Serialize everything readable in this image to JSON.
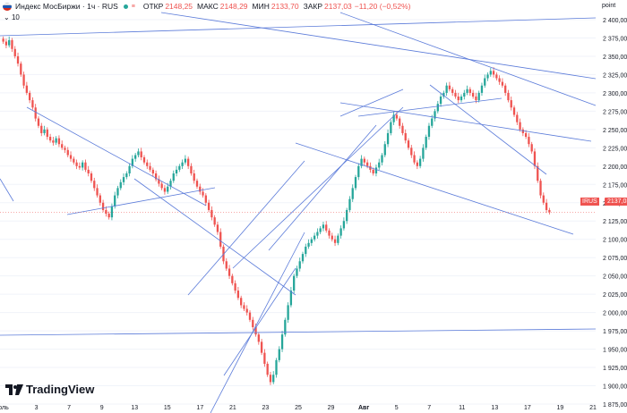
{
  "header": {
    "title": "Индекс МосБиржи · 1ч · RUS",
    "open_label": "ОТКР",
    "open_value": "2148,25",
    "high_label": "МАКС",
    "high_value": "2148,29",
    "low_label": "МИН",
    "low_value": "2133,70",
    "close_label": "ЗАКР",
    "close_value": "2137,03",
    "change": "−11,20 (−0,52%)",
    "volume_toggle": "10"
  },
  "price_axis": {
    "title": "point",
    "last_symbol": "IRUS",
    "last_price": "2137,03",
    "last_value": 2137.03
  },
  "brand": {
    "name": "TradingView"
  },
  "colors": {
    "up": "#26a69a",
    "down": "#ef5350",
    "trendline": "#5b7bd9",
    "grid": "#f0f3fa"
  },
  "chart_data": {
    "type": "candlestick",
    "ylim": [
      1875,
      2400
    ],
    "y_ticks": [
      "2 400,00",
      "2 375,00",
      "2 350,00",
      "2 325,00",
      "2 300,00",
      "2 275,00",
      "2 250,00",
      "2 225,00",
      "2 200,00",
      "2 175,00",
      "2 150,00",
      "2 125,00",
      "2 100,00",
      "2 075,00",
      "2 050,00",
      "2 025,00",
      "2 000,00",
      "1 975,00",
      "1 950,00",
      "1 925,00",
      "1 900,00",
      "1 875,00"
    ],
    "x_ticks": [
      "оль",
      "3",
      "7",
      "9",
      "13",
      "15",
      "17",
      "21",
      "23",
      "25",
      "29",
      "Авг",
      "5",
      "7",
      "11",
      "13",
      "17",
      "19",
      "21"
    ],
    "series_close": [
      2370,
      2365,
      2372,
      2360,
      2350,
      2340,
      2325,
      2310,
      2300,
      2290,
      2280,
      2265,
      2255,
      2245,
      2250,
      2240,
      2235,
      2232,
      2238,
      2230,
      2225,
      2222,
      2215,
      2210,
      2205,
      2200,
      2198,
      2205,
      2195,
      2190,
      2180,
      2170,
      2160,
      2150,
      2140,
      2135,
      2130,
      2145,
      2160,
      2170,
      2178,
      2185,
      2190,
      2200,
      2210,
      2215,
      2220,
      2212,
      2205,
      2200,
      2195,
      2190,
      2182,
      2176,
      2170,
      2165,
      2172,
      2180,
      2190,
      2195,
      2200,
      2205,
      2210,
      2200,
      2190,
      2180,
      2172,
      2165,
      2160,
      2150,
      2140,
      2130,
      2120,
      2110,
      2090,
      2070,
      2060,
      2050,
      2040,
      2030,
      2020,
      2010,
      2005,
      2000,
      1990,
      1980,
      1970,
      1960,
      1945,
      1930,
      1915,
      1905,
      1915,
      1935,
      1950,
      1970,
      1990,
      2010,
      2030,
      2050,
      2060,
      2070,
      2080,
      2090,
      2095,
      2100,
      2105,
      2110,
      2115,
      2120,
      2112,
      2105,
      2100,
      2095,
      2105,
      2115,
      2125,
      2140,
      2155,
      2170,
      2185,
      2200,
      2210,
      2205,
      2200,
      2195,
      2190,
      2198,
      2205,
      2215,
      2230,
      2245,
      2260,
      2270,
      2265,
      2255,
      2245,
      2235,
      2225,
      2215,
      2205,
      2200,
      2210,
      2225,
      2240,
      2255,
      2265,
      2275,
      2285,
      2295,
      2300,
      2310,
      2305,
      2300,
      2295,
      2290,
      2295,
      2300,
      2305,
      2300,
      2295,
      2290,
      2300,
      2310,
      2320,
      2325,
      2330,
      2325,
      2320,
      2315,
      2310,
      2300,
      2290,
      2280,
      2270,
      2260,
      2250,
      2245,
      2240,
      2230,
      2220,
      2200,
      2180,
      2160,
      2150,
      2140,
      2137
    ]
  }
}
